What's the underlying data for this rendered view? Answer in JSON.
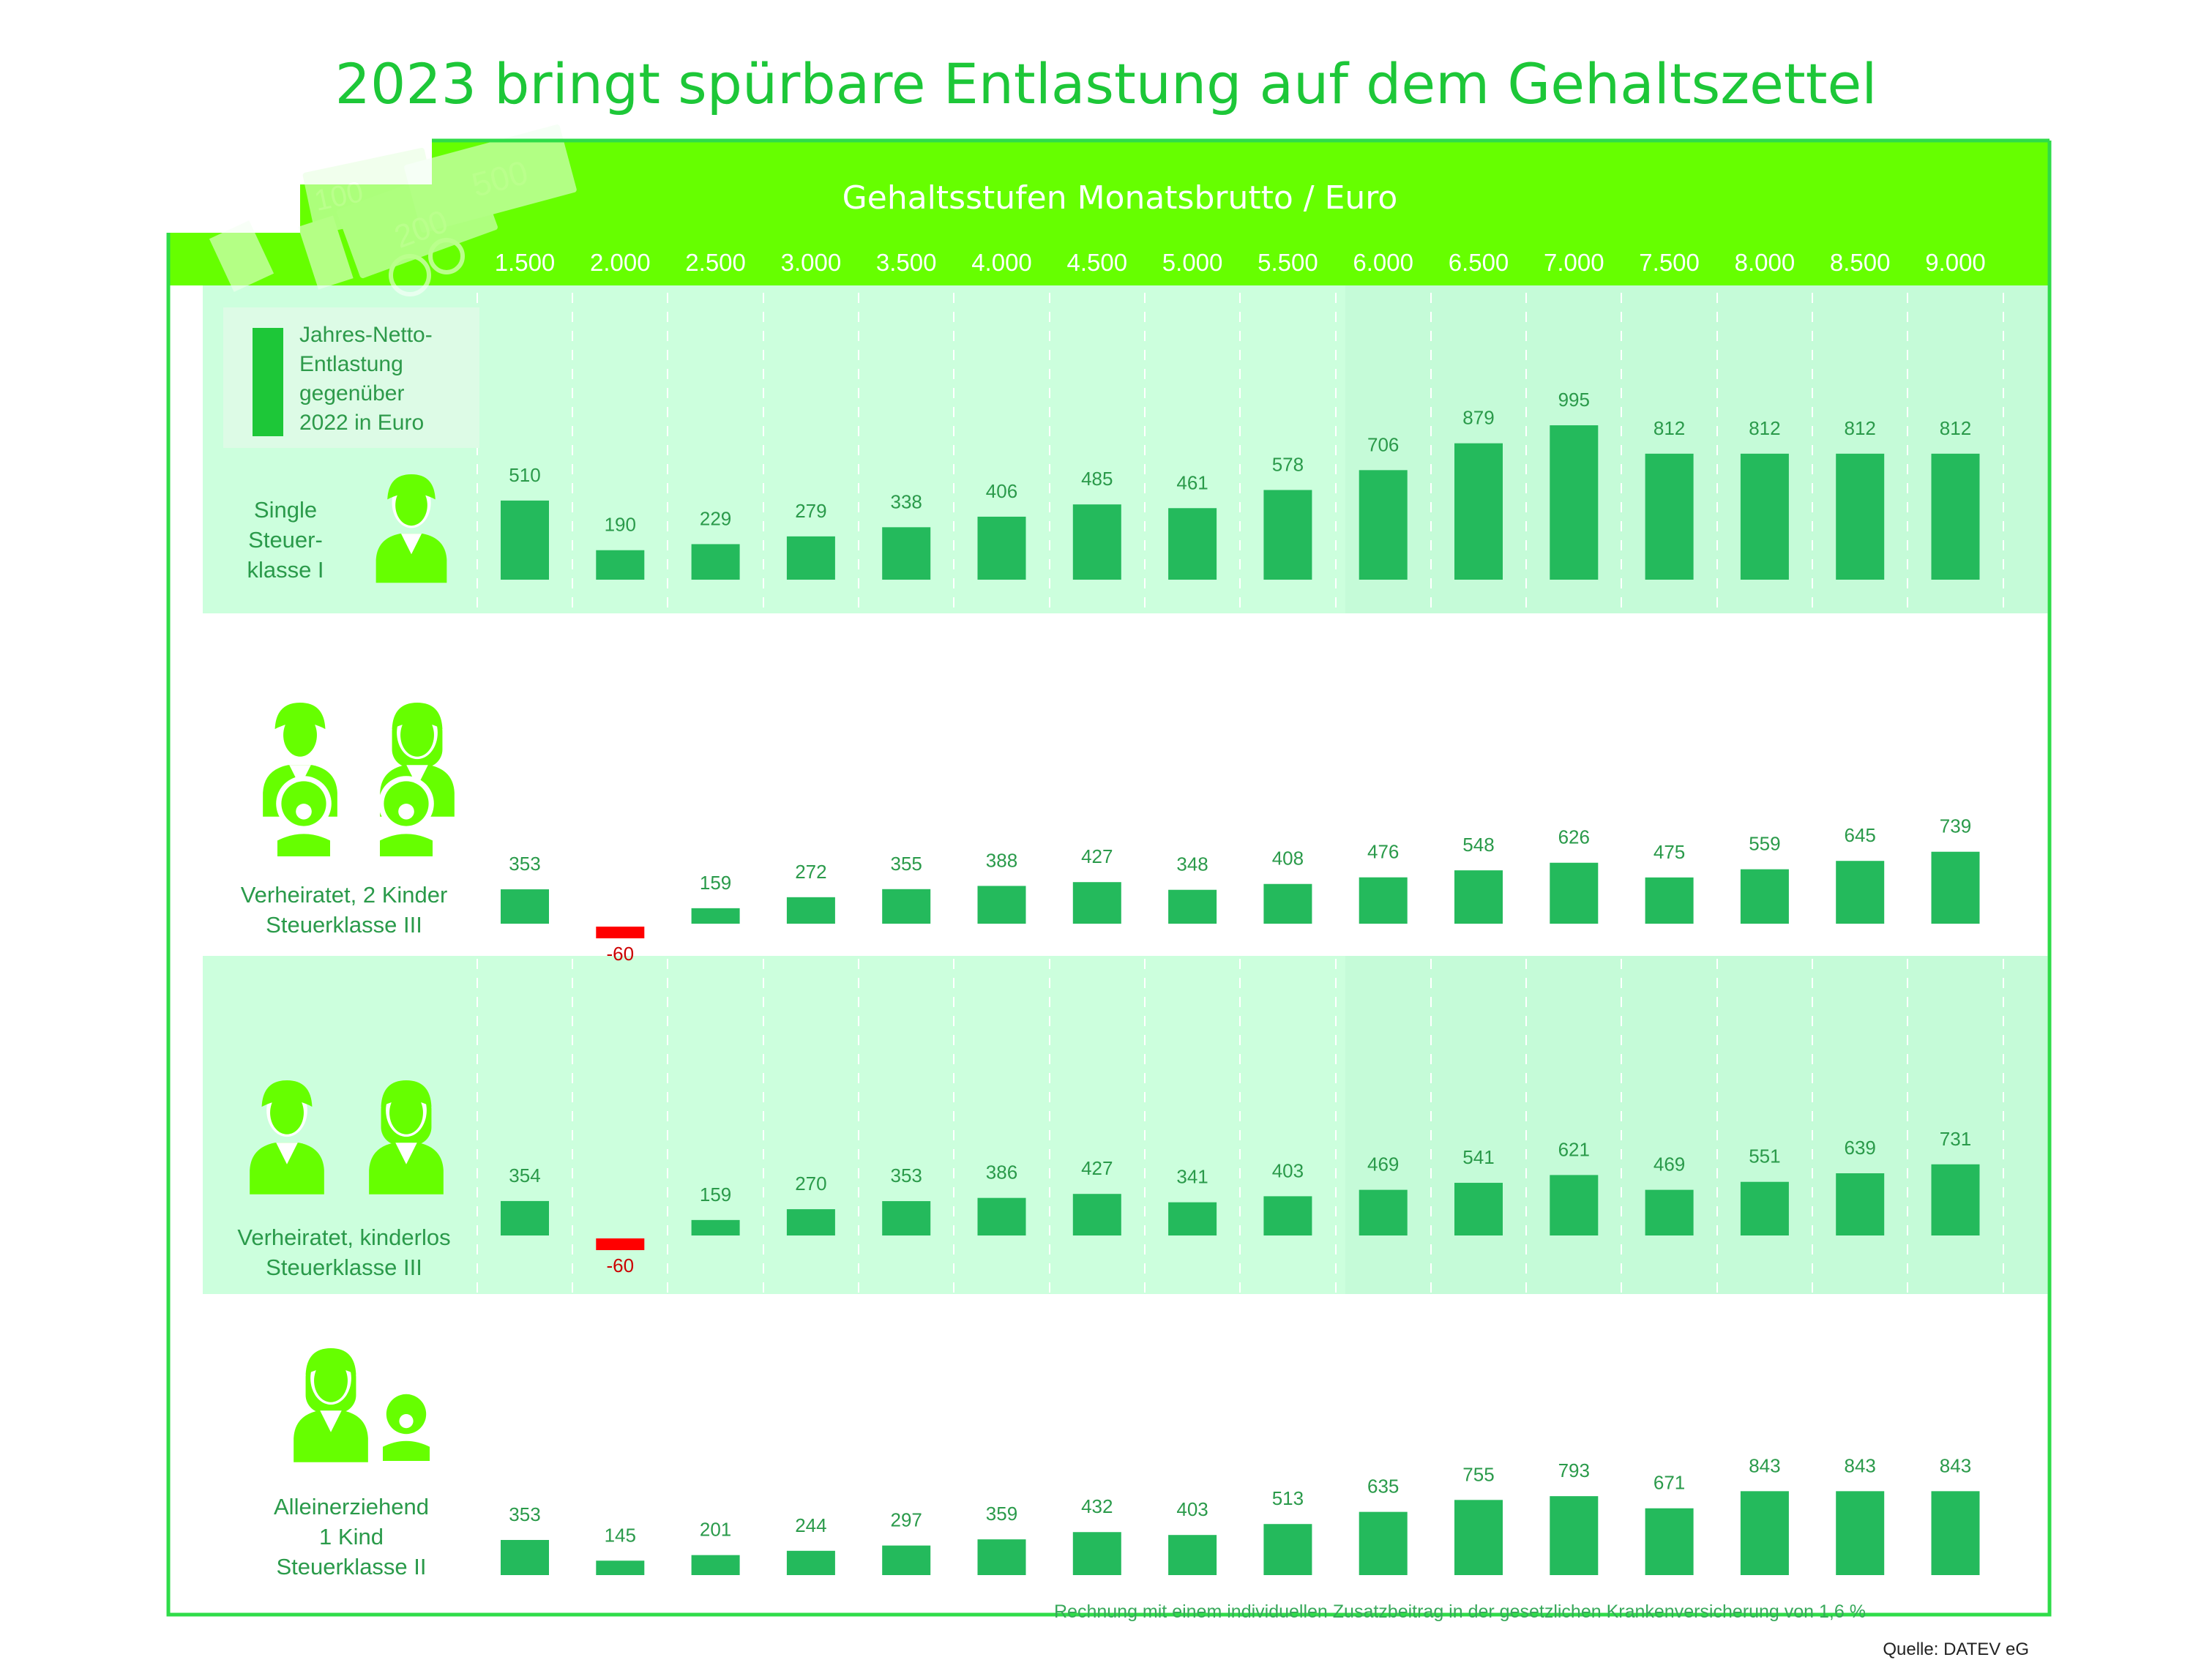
{
  "page": {
    "title": "2023 bringt spürbare Entlastung auf dem Gehaltszettel",
    "header_label": "Gehaltsstufen Monatsbrutto / Euro",
    "legend_text": "Jahres-Netto-\nEntlastung\ngegenüber\n2022 in Euro",
    "note": "Rechnung mit einem individuellen Zusatzbeitrag in der gesetzlichen Krankenversicherung von 1,6 %",
    "source": "Quelle: DATEV eG",
    "banknote_labels": [
      "500",
      "200",
      "100"
    ]
  },
  "colors": {
    "title": "#1dc738",
    "header_bg": "#66ff00",
    "frame": "#2fdc49",
    "band_light": "#ccffdd",
    "bar_positive": "#24ba5c",
    "bar_negative": "#ff0000",
    "icon": "#66ff00",
    "label_text": "#2a9a4a"
  },
  "chart_data": {
    "type": "bar",
    "xlabel": "Gehaltsstufen Monatsbrutto / Euro",
    "ylabel": "Jahres-Netto-Entlastung gegenüber 2022 in Euro",
    "categories": [
      "1.500",
      "2.000",
      "2.500",
      "3.000",
      "3.500",
      "4.000",
      "4.500",
      "5.000",
      "5.500",
      "6.000",
      "6.500",
      "7.000",
      "7.500",
      "8.000",
      "8.500",
      "9.000"
    ],
    "series": [
      {
        "name": "Single Steuerklasse I",
        "label": "Single\nSteuer-\nklasse I",
        "icon": "single-person-icon",
        "values": [
          510,
          190,
          229,
          279,
          338,
          406,
          485,
          461,
          578,
          706,
          879,
          995,
          812,
          812,
          812,
          812
        ]
      },
      {
        "name": "Verheiratet, 2 Kinder Steuerklasse III",
        "label": "Verheiratet, 2 Kinder\nSteuerklasse III",
        "icon": "family-icon",
        "values": [
          353,
          -60,
          159,
          272,
          355,
          388,
          427,
          348,
          408,
          476,
          548,
          626,
          475,
          559,
          645,
          739
        ]
      },
      {
        "name": "Verheiratet, kinderlos Steuerklasse III",
        "label": "Verheiratet, kinderlos\nSteuerklasse III",
        "icon": "couple-icon",
        "values": [
          354,
          -60,
          159,
          270,
          353,
          386,
          427,
          341,
          403,
          469,
          541,
          621,
          469,
          551,
          639,
          731
        ]
      },
      {
        "name": "Alleinerziehend 1 Kind Steuerklasse II",
        "label": "Alleinerziehend\n1 Kind\nSteuerklasse II",
        "icon": "single-parent-icon",
        "values": [
          353,
          145,
          201,
          244,
          297,
          359,
          432,
          403,
          513,
          635,
          755,
          793,
          671,
          843,
          843,
          843
        ]
      }
    ]
  }
}
